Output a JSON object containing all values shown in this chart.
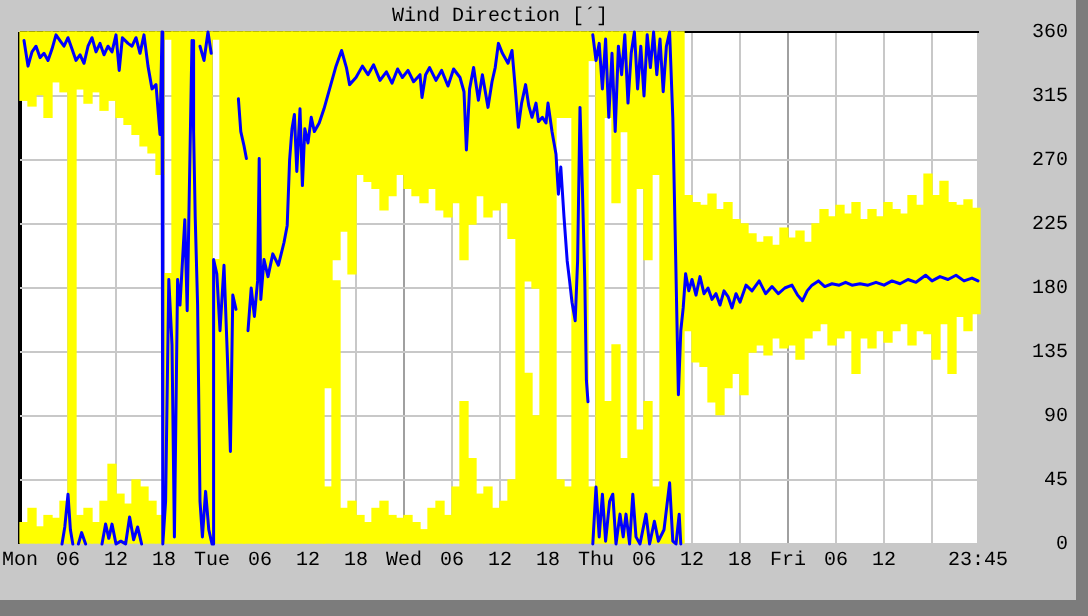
{
  "chart_data": {
    "type": "line",
    "title": "Wind Direction [´]",
    "x": [
      "--01-06T00:30",
      "--01-06T01:30",
      "--01-06T02:30",
      "--01-06T03:30",
      "--01-06T04:30",
      "--01-06T05:30",
      "--01-06T06:30",
      "--01-06T07:30",
      "--01-06T08:30",
      "--01-06T09:30",
      "--01-06T10:30",
      "--01-06T11:30",
      "--01-06T12:30",
      "--01-06T13:30",
      "--01-06T14:30",
      "--01-06T15:30",
      "--01-06T16:30",
      "--01-06T17:30",
      "--01-06T18:30",
      "--01-06T19:30",
      "--01-06T20:30",
      "--01-06T21:30",
      "--01-06T22:30",
      "--01-06T23:30",
      "--01-07T00:30",
      "--01-07T01:30",
      "--01-07T02:30",
      "--01-07T03:30",
      "--01-07T04:30",
      "--01-07T05:30",
      "--01-07T06:30",
      "--01-07T07:30",
      "--01-07T08:30",
      "--01-07T09:30",
      "--01-07T10:30",
      "--01-07T11:30",
      "--01-07T12:30",
      "--01-07T13:30",
      "--01-07T14:30",
      "--01-07T15:30",
      "--01-07T16:30",
      "--01-07T17:30",
      "--01-07T18:30",
      "--01-07T19:30",
      "--01-07T20:30",
      "--01-07T21:30",
      "--01-07T22:30",
      "--01-07T23:30",
      "--01-08T00:30",
      "--01-08T01:30",
      "--01-08T02:30",
      "--01-08T03:30",
      "--01-08T04:30",
      "--01-08T05:30",
      "--01-08T06:30",
      "--01-08T07:30",
      "--01-08T08:30",
      "--01-08T09:30",
      "--01-08T10:30",
      "--01-08T11:30",
      "--01-08T12:30",
      "--01-08T13:30",
      "--01-08T14:30",
      "--01-08T15:30",
      "--01-08T16:30",
      "--01-08T17:30",
      "--01-08T18:30",
      "--01-08T19:30",
      "--01-08T20:30",
      "--01-08T21:30",
      "--01-08T22:30",
      "--01-08T23:30",
      "--01-09T00:30",
      "--01-09T01:30",
      "--01-09T02:30",
      "--01-09T03:30",
      "--01-09T04:30",
      "--01-09T05:30",
      "--01-09T06:30",
      "--01-09T07:30",
      "--01-09T08:30",
      "--01-09T09:30",
      "--01-09T10:30",
      "--01-09T11:30",
      "--01-09T12:30",
      "--01-09T13:30",
      "--01-09T14:30",
      "--01-09T15:30",
      "--01-09T16:30",
      "--01-09T17:30",
      "--01-09T18:30",
      "--01-09T19:30",
      "--01-09T20:30",
      "--01-09T21:30",
      "--01-09T22:30",
      "--01-09T23:30",
      "--01-10T00:30",
      "--01-10T01:30",
      "--01-10T02:30",
      "--01-10T03:30",
      "--01-10T04:30",
      "--01-10T05:30",
      "--01-10T06:30",
      "--01-10T07:30",
      "--01-10T08:30",
      "--01-10T09:30",
      "--01-10T10:30",
      "--01-10T11:30",
      "--01-10T12:30",
      "--01-10T13:30",
      "--01-10T14:30",
      "--01-10T15:30",
      "--01-10T16:30",
      "--01-10T17:30",
      "--01-10T18:30",
      "--01-10T19:30",
      "--01-10T20:30",
      "--01-10T21:30",
      "--01-10T22:30",
      "--01-10T23:30"
    ],
    "xlim": [
      "--01-06T00:00",
      "--01-11T00:00"
    ],
    "xticks": [
      {
        "value": "--01-06T00:00",
        "label": "Mon"
      },
      {
        "value": "--01-06T06:00",
        "label": "06"
      },
      {
        "value": "--01-06T12:00",
        "label": "12"
      },
      {
        "value": "--01-06T18:00",
        "label": "18"
      },
      {
        "value": "--01-07T00:00",
        "label": "Tue"
      },
      {
        "value": "--01-07T06:00",
        "label": "06"
      },
      {
        "value": "--01-07T12:00",
        "label": "12"
      },
      {
        "value": "--01-07T18:00",
        "label": "18"
      },
      {
        "value": "--01-08T00:00",
        "label": "Wed"
      },
      {
        "value": "--01-08T06:00",
        "label": "06"
      },
      {
        "value": "--01-08T12:00",
        "label": "12"
      },
      {
        "value": "--01-08T18:00",
        "label": "18"
      },
      {
        "value": "--01-09T00:00",
        "label": "Thu"
      },
      {
        "value": "--01-09T06:00",
        "label": "06"
      },
      {
        "value": "--01-09T12:00",
        "label": "12"
      },
      {
        "value": "--01-09T18:00",
        "label": "18"
      },
      {
        "value": "--01-10T00:00",
        "label": "Fri"
      },
      {
        "value": "--01-10T06:00",
        "label": "06"
      },
      {
        "value": "--01-10T12:00",
        "label": "12"
      },
      {
        "value": "--01-10T18:00",
        "label": null
      },
      {
        "value": "--01-10T23:45",
        "label": "23:45"
      }
    ],
    "ylim": [
      0,
      360
    ],
    "yticks": [
      0,
      45,
      90,
      135,
      180,
      225,
      270,
      315,
      360
    ],
    "grid": true,
    "series": [
      {
        "type": "bar",
        "color": "#ffff00",
        "base": [
          0,
          0,
          0,
          0,
          0,
          0,
          0,
          0,
          0,
          0,
          0,
          0,
          0,
          0,
          0,
          0,
          0,
          0,
          0,
          0,
          0,
          0,
          0,
          0,
          0,
          0,
          0,
          0,
          0,
          0,
          0,
          0,
          0,
          0,
          0,
          0,
          0,
          0,
          0,
          0,
          0,
          0,
          0,
          0,
          0,
          0,
          0,
          0,
          0,
          0,
          0,
          0,
          0,
          0,
          0,
          0,
          0,
          0,
          0,
          0,
          0,
          0,
          0,
          0,
          0,
          0,
          0,
          0,
          0,
          0,
          0,
          0,
          0,
          0,
          0,
          0,
          0,
          0,
          0,
          0,
          0,
          0,
          0,
          150,
          128,
          125,
          100,
          91,
          110,
          120,
          105,
          135,
          140,
          133,
          145,
          138,
          140,
          130,
          145,
          150,
          155,
          140,
          145,
          150,
          120,
          145,
          138,
          150,
          142,
          150,
          155,
          140,
          150,
          148,
          130,
          155,
          120,
          160,
          150,
          162
        ],
        "values": [
          15,
          25,
          12,
          20,
          18,
          30,
          360,
          20,
          25,
          15,
          30,
          56,
          35,
          28,
          45,
          40,
          30,
          20,
          190,
          360,
          360,
          360,
          360,
          360,
          200,
          360,
          360,
          360,
          360,
          360,
          360,
          360,
          360,
          360,
          360,
          360,
          360,
          360,
          40,
          185,
          25,
          30,
          20,
          15,
          25,
          30,
          20,
          18,
          20,
          15,
          10,
          25,
          30,
          20,
          40,
          100,
          60,
          35,
          40,
          25,
          30,
          45,
          360,
          120,
          90,
          360,
          360,
          45,
          40,
          360,
          360,
          40,
          360,
          100,
          140,
          60,
          360,
          80,
          100,
          40,
          360,
          360,
          360,
          95,
          112,
          113,
          146,
          144,
          130,
          108,
          120,
          83,
          72,
          83,
          65,
          84,
          75,
          90,
          67,
          75,
          80,
          90,
          93,
          82,
          120,
          83,
          97,
          80,
          98,
          85,
          77,
          105,
          88,
          112,
          115,
          100,
          120,
          78,
          92,
          74
        ]
      },
      {
        "type": "bar",
        "color": "#ffff00",
        "base": [
          312,
          308,
          316,
          300,
          325,
          318,
          null,
          320,
          310,
          318,
          305,
          312,
          300,
          295,
          288,
          280,
          275,
          260,
          355,
          null,
          null,
          null,
          null,
          null,
          355,
          null,
          null,
          null,
          null,
          null,
          null,
          null,
          null,
          null,
          null,
          null,
          null,
          null,
          110,
          200,
          220,
          190,
          260,
          255,
          250,
          235,
          245,
          260,
          250,
          245,
          240,
          250,
          235,
          230,
          240,
          200,
          225,
          245,
          230,
          235,
          240,
          215,
          null,
          185,
          180,
          null,
          null,
          300,
          300,
          null,
          null,
          340,
          null,
          300,
          240,
          290,
          null,
          250,
          200,
          260,
          null,
          null,
          null,
          null,
          null,
          null,
          null,
          null,
          null,
          null,
          null,
          null,
          null,
          null,
          null,
          null,
          null,
          null,
          null,
          null,
          null,
          null,
          null,
          null,
          null,
          null,
          null,
          null,
          null,
          null,
          null,
          null,
          null,
          null,
          null,
          null,
          null,
          null,
          null,
          null
        ],
        "values": [
          48,
          52,
          44,
          60,
          35,
          42,
          null,
          40,
          50,
          42,
          55,
          48,
          60,
          65,
          72,
          80,
          85,
          100,
          5,
          null,
          null,
          null,
          null,
          null,
          5,
          null,
          null,
          null,
          null,
          null,
          null,
          null,
          null,
          null,
          null,
          null,
          null,
          null,
          250,
          160,
          140,
          170,
          100,
          105,
          110,
          125,
          115,
          100,
          110,
          115,
          120,
          110,
          125,
          130,
          120,
          160,
          135,
          115,
          130,
          125,
          120,
          145,
          null,
          175,
          180,
          null,
          null,
          60,
          60,
          null,
          null,
          20,
          null,
          60,
          120,
          70,
          null,
          110,
          160,
          100,
          null,
          null,
          null,
          null,
          null,
          null,
          null,
          null,
          null,
          null,
          null,
          null,
          null,
          null,
          null,
          null,
          null,
          null,
          null,
          null,
          null,
          null,
          null,
          null,
          null,
          null,
          null,
          null,
          null,
          null,
          null,
          null,
          null,
          null,
          null,
          null,
          null,
          null,
          null,
          null
        ]
      },
      {
        "color": "#0000ff",
        "x": [
          "--01-06T00:30",
          "--01-06T01:00",
          "--01-06T01:30",
          "--01-06T02:00",
          "--01-06T02:30",
          "--01-06T03:00",
          "--01-06T03:30",
          "--01-06T04:00",
          "--01-06T04:30",
          "--01-06T05:00",
          "--01-06T05:30",
          "--01-06T06:00",
          "--01-06T06:30",
          "--01-06T07:00",
          "--01-06T07:30",
          "--01-06T08:00",
          "--01-06T08:30",
          "--01-06T09:00",
          "--01-06T09:30",
          "--01-06T10:00",
          "--01-06T10:30",
          "--01-06T11:00",
          "--01-06T11:30",
          "--01-06T12:00",
          "--01-06T12:24",
          "--01-06T12:48",
          "--01-06T13:30",
          "--01-06T14:00",
          "--01-06T14:30",
          "--01-06T15:00",
          "--01-06T15:30",
          "--01-06T16:00",
          "--01-06T16:30",
          "--01-06T17:00",
          "--01-06T17:30",
          "--01-06T17:45",
          "--01-06T17:51",
          "--01-06T18:12",
          "--01-06T18:36",
          "--01-06T19:00",
          "--01-06T19:18",
          "--01-06T19:42",
          "--01-06T20:00",
          "--01-06T20:36",
          "--01-06T20:54",
          "--01-06T21:30",
          "--01-06T21:42",
          "--01-06T21:54",
          "--01-06T22:12",
          "--01-06T22:30",
          "--01-06T22:48",
          "--01-06T23:12",
          "--01-06T23:36",
          "--01-07T00:00",
          "--01-07T00:12",
          "--01-07T00:36",
          "--01-07T01:00",
          "--01-07T01:30",
          "--01-07T02:00",
          "--01-07T02:18",
          "--01-07T02:36",
          "--01-07T03:00",
          "--01-07T03:06",
          "--01-07T03:18",
          "--01-07T03:36",
          "--01-07T04:00",
          "--01-07T04:18",
          "--01-07T04:24",
          "--01-07T04:30",
          "--01-07T04:54",
          "--01-07T05:18",
          "--01-07T05:42",
          "--01-07T05:54",
          "--01-07T06:06",
          "--01-07T06:30",
          "--01-07T07:00",
          "--01-07T07:36",
          "--01-07T08:18",
          "--01-07T09:00",
          "--01-07T09:24",
          "--01-07T09:42",
          "--01-07T10:00",
          "--01-07T10:18",
          "--01-07T10:36",
          "--01-07T11:00",
          "--01-07T11:18",
          "--01-07T11:36",
          "--01-07T12:00",
          "--01-07T12:24",
          "--01-07T12:48",
          "--01-07T13:24",
          "--01-07T14:00",
          "--01-07T14:30",
          "--01-07T15:00",
          "--01-07T15:30",
          "--01-07T16:12",
          "--01-07T16:48",
          "--01-07T17:12",
          "--01-07T18:00",
          "--01-07T18:48",
          "--01-07T19:30",
          "--01-07T20:12",
          "--01-07T21:00",
          "--01-07T21:48",
          "--01-07T22:30",
          "--01-07T23:12",
          "--01-07T23:48",
          "--01-08T00:30",
          "--01-08T01:12",
          "--01-08T02:00",
          "--01-08T02:15",
          "--01-08T02:42",
          "--01-08T03:12",
          "--01-08T04:00",
          "--01-08T04:42",
          "--01-08T05:30",
          "--01-08T06:12",
          "--01-08T07:00",
          "--01-08T07:30",
          "--01-08T07:48",
          "--01-08T08:12",
          "--01-08T08:42",
          "--01-08T09:18",
          "--01-08T09:48",
          "--01-08T10:30",
          "--01-08T11:00",
          "--01-08T11:24",
          "--01-08T11:48",
          "--01-08T12:18",
          "--01-08T13:00",
          "--01-08T13:30",
          "--01-08T13:54",
          "--01-08T14:18",
          "--01-08T14:42",
          "--01-08T15:12",
          "--01-08T15:36",
          "--01-08T16:00",
          "--01-08T16:30",
          "--01-08T16:48",
          "--01-08T17:18",
          "--01-08T17:45",
          "--01-08T18:00",
          "--01-08T18:30",
          "--01-08T19:00",
          "--01-08T19:18",
          "--01-08T19:36",
          "--01-08T20:00",
          "--01-08T20:24",
          "--01-08T20:42",
          "--01-08T21:00",
          "--01-08T21:24",
          "--01-08T21:42",
          "--01-08T22:00",
          "--01-08T22:18",
          "--01-08T22:36",
          "--01-08T22:48",
          "--01-08T23:00",
          "--01-08T23:18",
          "--01-08T23:36",
          "--01-09T00:00",
          "--01-09T00:24",
          "--01-09T00:48",
          "--01-09T01:12",
          "--01-09T01:36",
          "--01-09T02:00",
          "--01-09T02:24",
          "--01-09T02:48",
          "--01-09T03:12",
          "--01-09T03:36",
          "--01-09T04:00",
          "--01-09T04:24",
          "--01-09T04:48",
          "--01-09T05:12",
          "--01-09T05:36",
          "--01-09T06:00",
          "--01-09T06:24",
          "--01-09T06:48",
          "--01-09T07:12",
          "--01-09T07:36",
          "--01-09T08:00",
          "--01-09T08:24",
          "--01-09T08:48",
          "--01-09T09:12",
          "--01-09T09:36",
          "--01-09T10:00",
          "--01-09T10:18",
          "--01-09T10:36",
          "--01-09T10:54",
          "--01-09T11:12",
          "--01-09T11:36",
          "--01-09T12:00",
          "--01-09T12:30",
          "--01-09T13:00",
          "--01-09T13:30",
          "--01-09T14:00",
          "--01-09T14:30",
          "--01-09T15:00",
          "--01-09T15:30",
          "--01-09T16:00",
          "--01-09T16:30",
          "--01-09T17:00",
          "--01-09T17:30",
          "--01-09T18:00",
          "--01-09T18:45",
          "--01-09T19:30",
          "--01-09T20:24",
          "--01-09T21:12",
          "--01-09T22:00",
          "--01-09T22:48",
          "--01-09T23:36",
          "--01-10T00:30",
          "--01-10T01:12",
          "--01-10T01:48",
          "--01-10T02:24",
          "--01-10T03:00",
          "--01-10T03:48",
          "--01-10T04:36",
          "--01-10T05:30",
          "--01-10T06:24",
          "--01-10T07:12",
          "--01-10T08:00",
          "--01-10T09:00",
          "--01-10T10:00",
          "--01-10T11:00",
          "--01-10T12:00",
          "--01-10T13:00",
          "--01-10T14:00",
          "--01-10T15:00",
          "--01-10T16:00",
          "--01-10T17:12",
          "--01-10T18:00",
          "--01-10T19:00",
          "--01-10T20:00",
          "--01-10T21:00",
          "--01-10T22:00",
          "--01-10T23:00",
          "--01-10T23:45"
        ],
        "values": [
          354,
          336,
          346,
          350,
          342,
          345,
          340,
          348,
          358,
          354,
          350,
          356,
          348,
          340,
          344,
          338,
          350,
          356,
          346,
          352,
          344,
          350,
          346,
          358,
          333,
          356,
          352,
          350,
          356,
          345,
          358,
          336,
          320,
          323,
          288,
          360,
          0,
          30,
          186,
          140,
          5,
          186,
          168,
          228,
          164,
          354,
          290,
          230,
          168,
          30,
          5,
          37,
          10,
          0,
          200,
          190,
          150,
          196,
          120,
          65,
          175,
          165,
          null,
          313,
          290,
          280,
          271,
          null,
          150,
          180,
          160,
          185,
          271,
          172,
          200,
          188,
          204,
          196,
          212,
          224,
          270,
          292,
          302,
          262,
          306,
          252,
          292,
          282,
          300,
          290,
          296,
          306,
          316,
          326,
          336,
          347,
          335,
          323,
          328,
          336,
          330,
          337,
          326,
          332,
          324,
          334,
          328,
          333,
          325,
          330,
          314,
          330,
          335,
          326,
          333,
          322,
          334,
          328,
          318,
          277,
          320,
          335,
          312,
          330,
          307,
          325,
          335,
          352,
          345,
          338,
          347,
          321,
          293,
          310,
          323,
          308,
          300,
          310,
          297,
          300,
          296,
          310,
          290,
          274,
          246,
          265,
          230,
          199,
          185,
          170,
          157,
          199,
          307,
          250,
          185,
          115,
          100,
          null,
          358,
          340,
          352,
          320,
          355,
          300,
          345,
          290,
          350,
          330,
          358,
          310,
          345,
          360,
          320,
          350,
          315,
          358,
          335,
          360,
          330,
          355,
          318,
          350,
          360,
          300,
          190,
          105,
          150,
          166,
          190,
          178,
          186,
          175,
          188,
          176,
          180,
          172,
          176,
          168,
          178,
          174,
          166,
          176,
          170,
          182,
          178,
          185,
          176,
          181,
          176,
          180,
          182,
          175,
          171,
          178,
          182,
          185,
          181,
          183,
          182,
          184,
          182,
          183,
          182,
          184,
          182,
          185,
          183,
          186,
          184,
          189,
          185,
          188,
          186,
          189,
          185,
          187,
          185
        ]
      },
      {
        "color": "#0000ff",
        "x": [
          "--01-06T05:15",
          "--01-06T05:36",
          "--01-06T06:00",
          "--01-06T06:18",
          "--01-06T06:36",
          "--01-06T06:42",
          "--01-06T07:18",
          "--01-06T07:42",
          "--01-06T08:12",
          "--01-06T08:18",
          "--01-06T10:15",
          "--01-06T10:42",
          "--01-06T11:06",
          "--01-06T11:30",
          "--01-06T12:00",
          "--01-06T12:36",
          "--01-06T13:12",
          "--01-06T13:42",
          "--01-06T14:12",
          "--01-06T14:42",
          "--01-06T15:12",
          "--01-06T15:18",
          "--01-06T22:30",
          "--01-06T23:00",
          "--01-06T23:30",
          "--01-06T23:54",
          "--01-07T00:00",
          "--01-08T23:36",
          "--01-09T00:00",
          "--01-09T00:24",
          "--01-09T00:48",
          "--01-09T01:12",
          "--01-09T01:42",
          "--01-09T02:06",
          "--01-09T02:30",
          "--01-09T03:00",
          "--01-09T03:24",
          "--01-09T03:45",
          "--01-09T04:12",
          "--01-09T04:36",
          "--01-09T05:00",
          "--01-09T05:30",
          "--01-09T06:15",
          "--01-09T06:42",
          "--01-09T07:18",
          "--01-09T07:48",
          "--01-09T08:30",
          "--01-09T09:12",
          "--01-09T09:36",
          "--01-09T10:00",
          "--01-09T10:24",
          "--01-09T10:36"
        ],
        "values": [
          0,
          12,
          35,
          10,
          0,
          null,
          0,
          8,
          0,
          null,
          0,
          14,
          4,
          14,
          0,
          2,
          0,
          19,
          3,
          12,
          0,
          null,
          350,
          340,
          360,
          345,
          null,
          0,
          40,
          5,
          35,
          2,
          30,
          35,
          0,
          21,
          5,
          21,
          0,
          35,
          5,
          0,
          21,
          0,
          16,
          2,
          10,
          43,
          2,
          0,
          21,
          0
        ]
      }
    ]
  }
}
